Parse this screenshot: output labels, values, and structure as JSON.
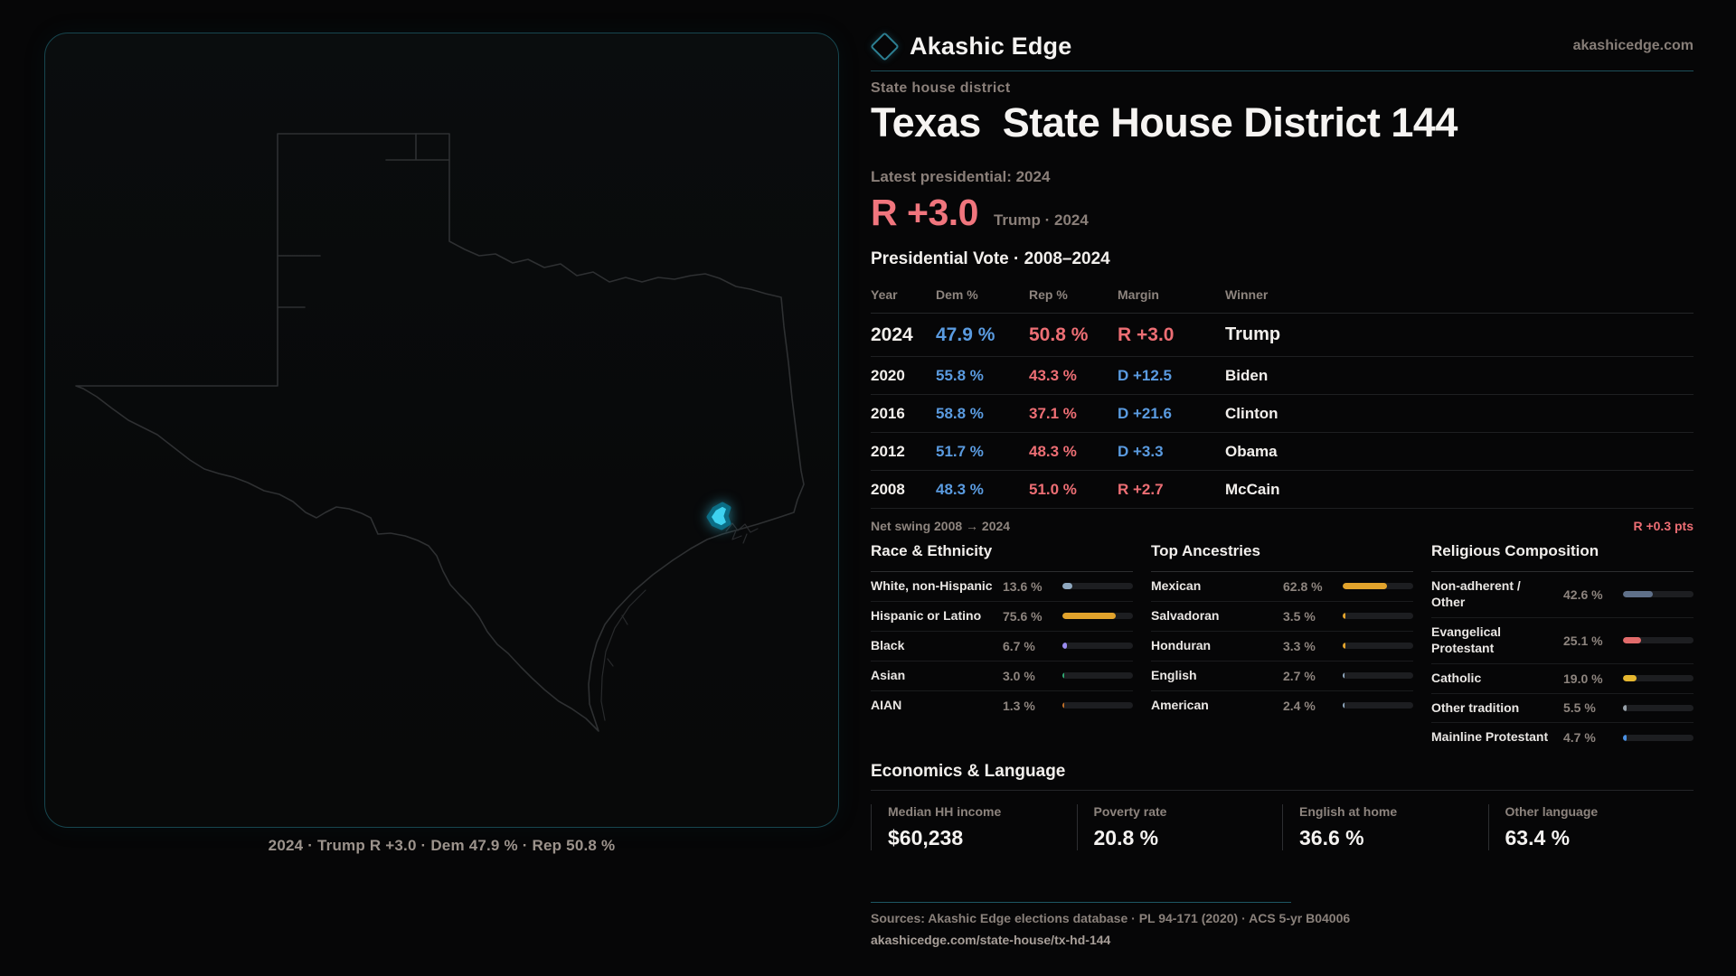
{
  "brand": {
    "name": "Akashic Edge",
    "domain": "akashicedge.com"
  },
  "header": {
    "kicker": "State house district",
    "title": "Texas  State House District 144",
    "latest": "Latest presidential: 2024",
    "margin": "R +3.0",
    "margin_note": "Trump · 2024"
  },
  "vote_table": {
    "title": "Presidential Vote · 2008–2024",
    "columns": [
      "Year",
      "Dem %",
      "Rep %",
      "Margin",
      "Winner"
    ],
    "rows": [
      {
        "year": "2024",
        "dem": "47.9 %",
        "rep": "50.8 %",
        "margin": "R +3.0",
        "party": "R",
        "winner": "Trump",
        "big": true
      },
      {
        "year": "2020",
        "dem": "55.8 %",
        "rep": "43.3 %",
        "margin": "D +12.5",
        "party": "D",
        "winner": "Biden"
      },
      {
        "year": "2016",
        "dem": "58.8 %",
        "rep": "37.1 %",
        "margin": "D +21.6",
        "party": "D",
        "winner": "Clinton"
      },
      {
        "year": "2012",
        "dem": "51.7 %",
        "rep": "48.3 %",
        "margin": "D +3.3",
        "party": "D",
        "winner": "Obama"
      },
      {
        "year": "2008",
        "dem": "48.3 %",
        "rep": "51.0 %",
        "margin": "R +2.7",
        "party": "R",
        "winner": "McCain"
      }
    ]
  },
  "net_swing": {
    "label": "Net swing 2008 → 2024",
    "value": "R +0.3 pts"
  },
  "demographics": {
    "race": {
      "title": "Race & Ethnicity",
      "items": [
        {
          "label": "White, non-Hispanic",
          "value": "13.6 %",
          "pct": 13.6,
          "color": "#8fa8bf"
        },
        {
          "label": "Hispanic or Latino",
          "value": "75.6 %",
          "pct": 75.6,
          "color": "#e2a32c"
        },
        {
          "label": "Black",
          "value": "6.7 %",
          "pct": 6.7,
          "color": "#998bef"
        },
        {
          "label": "Asian",
          "value": "3.0 %",
          "pct": 3.0,
          "color": "#2fa873"
        },
        {
          "label": "AIAN",
          "value": "1.3 %",
          "pct": 1.3,
          "color": "#c06f28"
        }
      ]
    },
    "ancestry": {
      "title": "Top Ancestries",
      "items": [
        {
          "label": "Mexican",
          "value": "62.8 %",
          "pct": 62.8,
          "color": "#e2a32c"
        },
        {
          "label": "Salvadoran",
          "value": "3.5 %",
          "pct": 3.5,
          "color": "#e2a32c"
        },
        {
          "label": "Honduran",
          "value": "3.3 %",
          "pct": 3.3,
          "color": "#e2a32c"
        },
        {
          "label": "English",
          "value": "2.7 %",
          "pct": 2.7,
          "color": "#8fa8bf"
        },
        {
          "label": "American",
          "value": "2.4 %",
          "pct": 2.4,
          "color": "#8fa8bf"
        }
      ]
    },
    "religion": {
      "title": "Religious Composition",
      "items": [
        {
          "label": "Non-adherent / Other",
          "value": "42.6 %",
          "pct": 42.6,
          "color": "#5f7089"
        },
        {
          "label": "Evangelical Protestant",
          "value": "25.1 %",
          "pct": 25.1,
          "color": "#e26b6b"
        },
        {
          "label": "Catholic",
          "value": "19.0 %",
          "pct": 19.0,
          "color": "#e6b72f"
        },
        {
          "label": "Other tradition",
          "value": "5.5 %",
          "pct": 5.5,
          "color": "#97a0a8"
        },
        {
          "label": "Mainline Protestant",
          "value": "4.7 %",
          "pct": 4.7,
          "color": "#4a90e2"
        }
      ]
    }
  },
  "economics": {
    "title": "Economics & Language",
    "stats": [
      {
        "label": "Median HH income",
        "value": "$60,238"
      },
      {
        "label": "Poverty rate",
        "value": "20.8 %"
      },
      {
        "label": "English at home",
        "value": "36.6 %"
      },
      {
        "label": "Other language",
        "value": "63.4 %"
      }
    ]
  },
  "map": {
    "caption": "2024 · Trump R +3.0 · Dem 47.9 % · Rep 50.8 %",
    "district_color": "#3ed2f0"
  },
  "footer": {
    "sources": "Sources: Akashic Edge elections database · PL 94-171 (2020) · ACS 5-yr B04006",
    "permalink": "akashicedge.com/state-house/tx-hd-144"
  },
  "colors": {
    "dem_blue": "#5a9be0",
    "rep_red": "#ed6e74",
    "accent_teal": "#1c4f59",
    "district_cyan": "#3ed2f0"
  },
  "chart_data": [
    {
      "type": "table",
      "title": "Presidential Vote · 2008–2024",
      "columns": [
        "Year",
        "Dem %",
        "Rep %",
        "Margin",
        "Winner"
      ],
      "rows": [
        [
          2024,
          47.9,
          50.8,
          "R +3.0",
          "Trump"
        ],
        [
          2020,
          55.8,
          43.3,
          "D +12.5",
          "Biden"
        ],
        [
          2016,
          58.8,
          37.1,
          "D +21.6",
          "Clinton"
        ],
        [
          2012,
          51.7,
          48.3,
          "D +3.3",
          "Obama"
        ],
        [
          2008,
          48.3,
          51.0,
          "R +2.7",
          "McCain"
        ]
      ],
      "annotations": [
        "Net swing 2008 → 2024: R +0.3 pts",
        "Latest presidential 2024: R +3.0 (Trump)"
      ]
    },
    {
      "type": "bar",
      "title": "Race & Ethnicity",
      "xlim": [
        0,
        100
      ],
      "categories": [
        "White, non-Hispanic",
        "Hispanic or Latino",
        "Black",
        "Asian",
        "AIAN"
      ],
      "values": [
        13.6,
        75.6,
        6.7,
        3.0,
        1.3
      ]
    },
    {
      "type": "bar",
      "title": "Top Ancestries",
      "xlim": [
        0,
        100
      ],
      "categories": [
        "Mexican",
        "Salvadoran",
        "Honduran",
        "English",
        "American"
      ],
      "values": [
        62.8,
        3.5,
        3.3,
        2.7,
        2.4
      ]
    },
    {
      "type": "bar",
      "title": "Religious Composition",
      "xlim": [
        0,
        100
      ],
      "categories": [
        "Non-adherent / Other",
        "Evangelical Protestant",
        "Catholic",
        "Other tradition",
        "Mainline Protestant"
      ],
      "values": [
        42.6,
        25.1,
        19.0,
        5.5,
        4.7
      ]
    }
  ]
}
